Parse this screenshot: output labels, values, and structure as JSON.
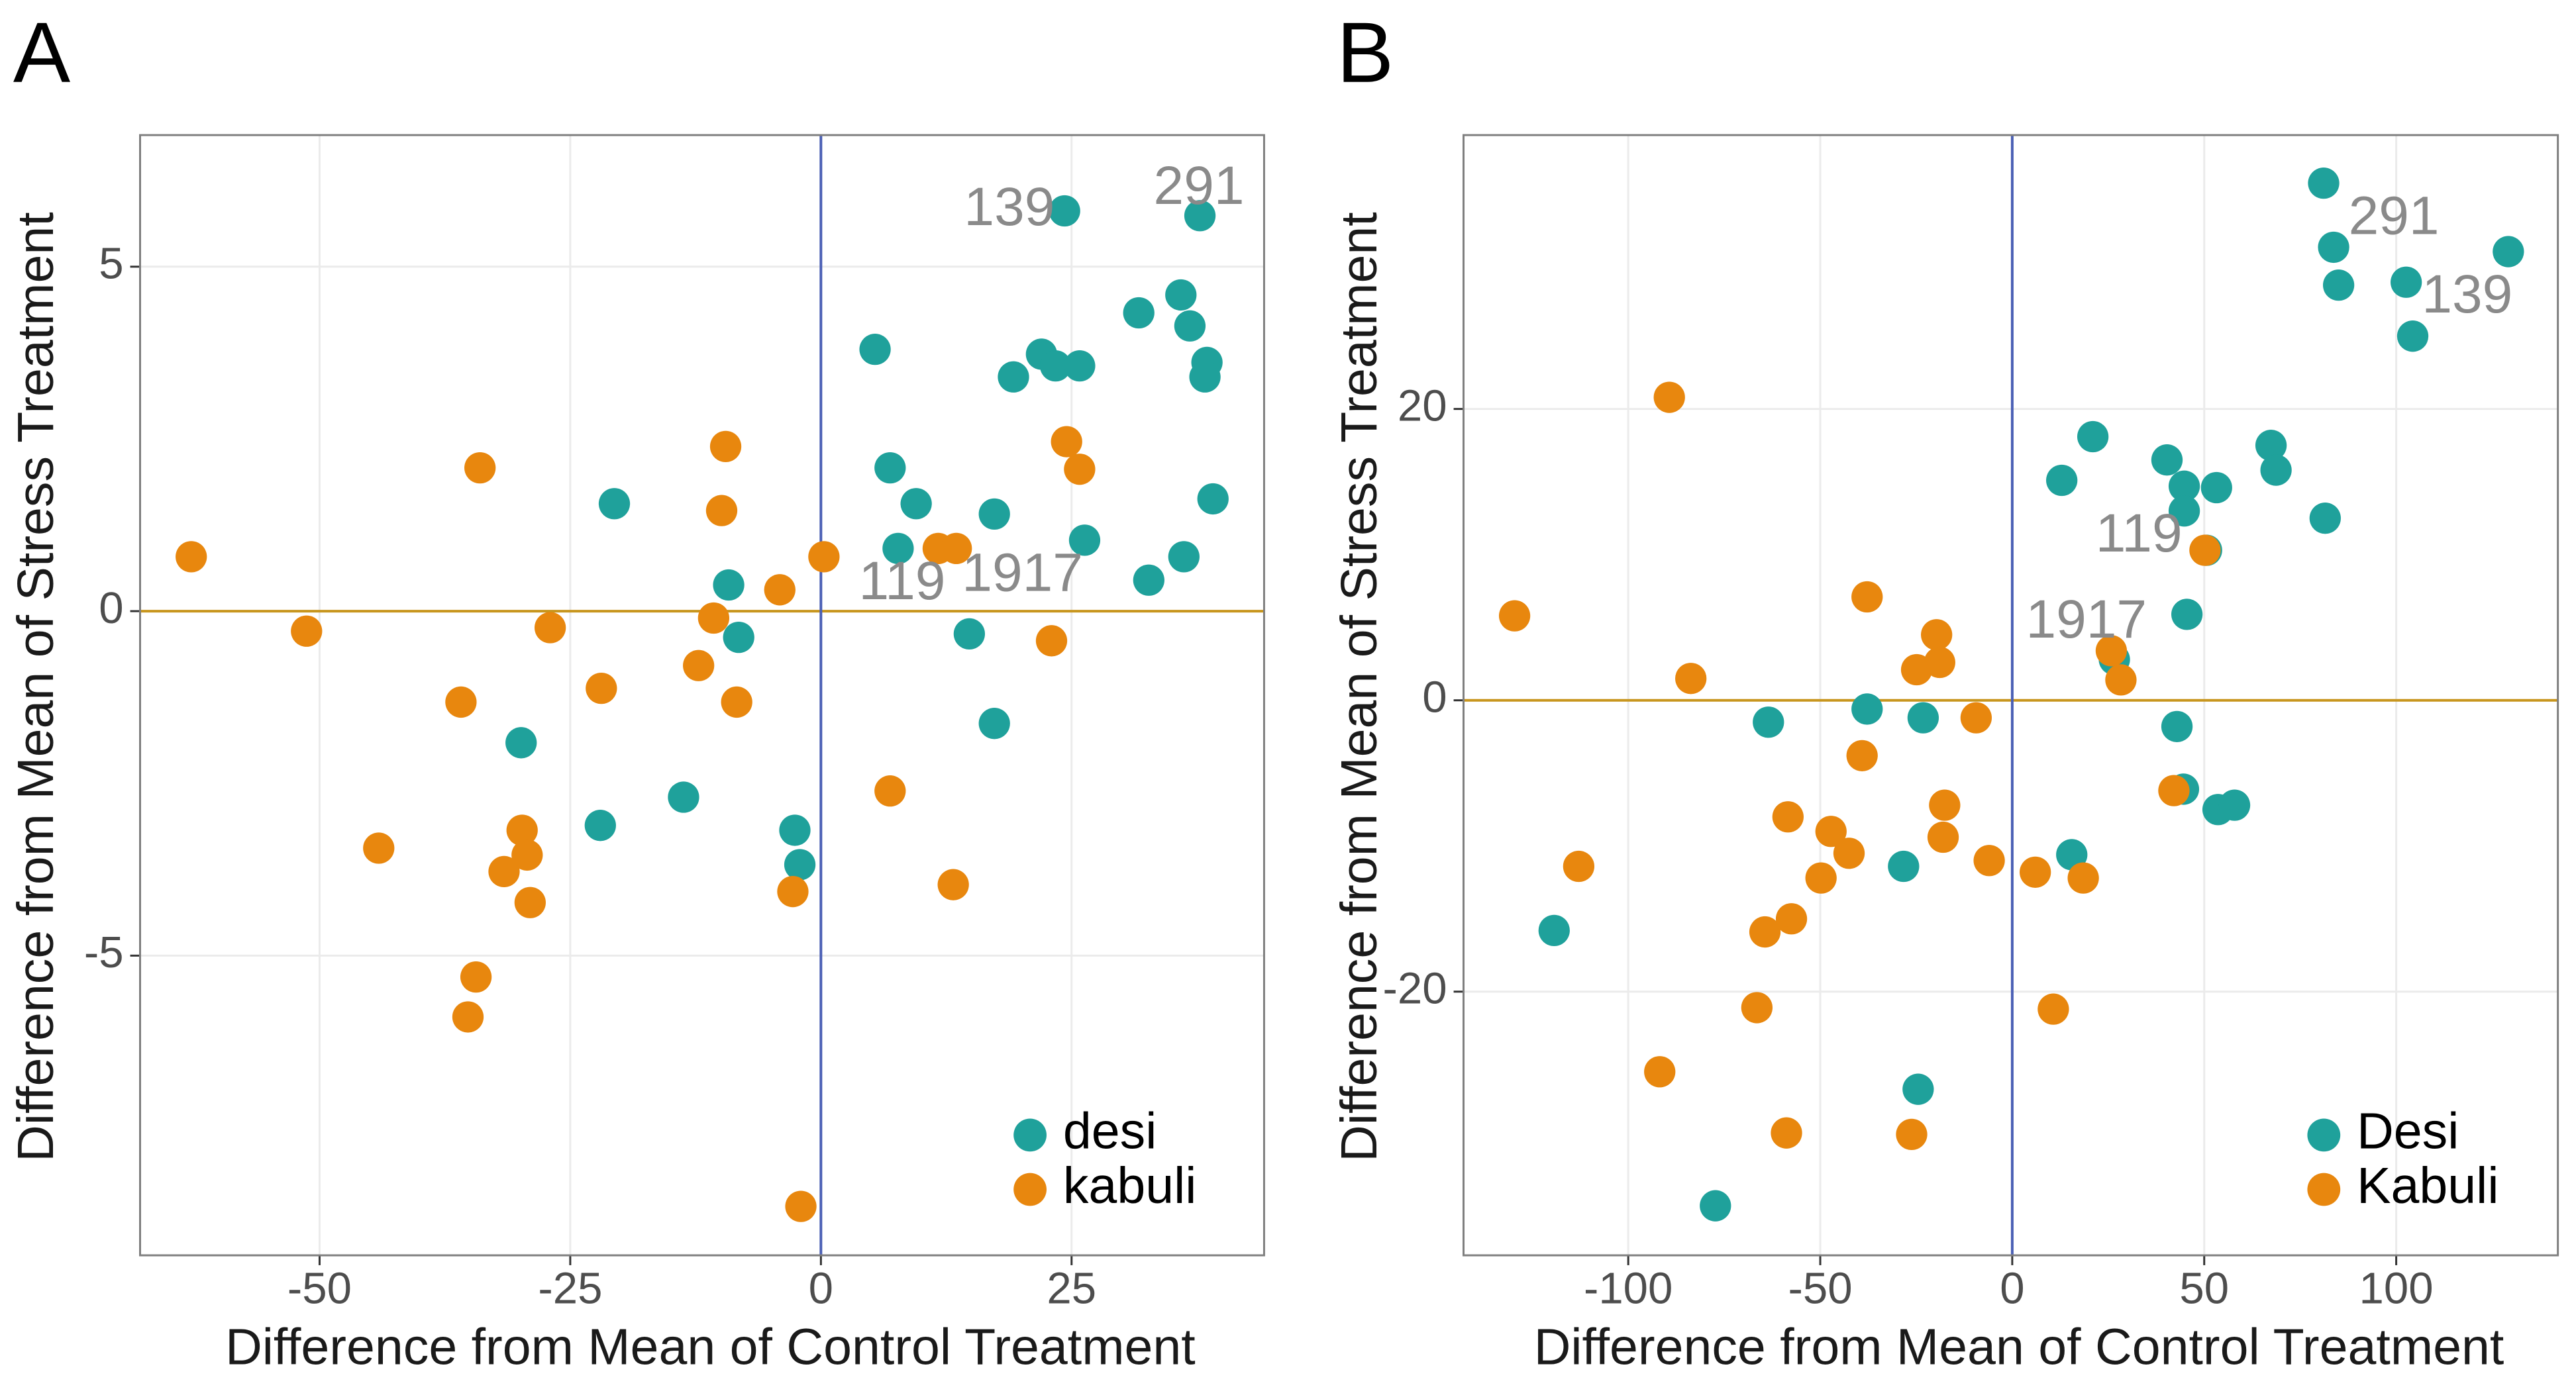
{
  "chart_data": [
    {
      "type": "scatter",
      "panel_label": "A",
      "x_label": "Difference from Mean of Control Treatment",
      "y_label": "Difference from Mean of Stress Treatment",
      "xlim": [
        -67.9,
        44.2
      ],
      "ylim": [
        -9.35,
        6.91
      ],
      "xticks": [
        -50,
        -25,
        0,
        25
      ],
      "yticks": [
        -5,
        0,
        5
      ],
      "grid": true,
      "hline": 0,
      "vline": 0,
      "legend": "bottom-right",
      "series": [
        {
          "name": "desi",
          "color": "#1fa19b",
          "x": [
            24.3,
            37.8,
            5.4,
            6.9,
            -20.6,
            9.5,
            7.7,
            -9.2,
            -8.2,
            -29.9,
            -22.0,
            -13.7,
            -2.6,
            -2.1,
            14.8,
            17.3,
            17.3,
            19.2,
            22.0,
            23.4,
            25.8,
            26.3,
            31.7,
            32.7,
            35.9,
            36.8,
            38.5,
            38.3,
            39.1,
            36.2
          ],
          "y": [
            5.81,
            5.74,
            3.8,
            2.08,
            1.56,
            1.56,
            0.91,
            0.38,
            -0.38,
            -1.91,
            -3.11,
            -2.7,
            -3.18,
            -3.68,
            -0.33,
            1.41,
            -1.63,
            3.4,
            3.73,
            3.56,
            3.56,
            1.03,
            4.33,
            0.45,
            4.59,
            4.14,
            3.61,
            3.4,
            1.63,
            0.79
          ]
        },
        {
          "name": "kabuli",
          "color": "#e8870e",
          "x": [
            -62.8,
            -51.3,
            -34.0,
            -27.0,
            -35.9,
            -21.9,
            -44.1,
            -34.4,
            -35.2,
            -31.6,
            -29.8,
            -29.3,
            -29.0,
            -9.5,
            -9.9,
            -10.7,
            -12.2,
            -8.4,
            -4.1,
            0.3,
            -2.8,
            -2.0,
            6.9,
            11.7,
            13.5,
            13.2,
            23.0,
            24.5,
            25.8
          ],
          "y": [
            0.79,
            -0.29,
            2.08,
            -0.24,
            -1.32,
            -1.12,
            -3.44,
            -5.31,
            -5.89,
            -3.78,
            -3.18,
            -3.54,
            -4.23,
            2.39,
            1.46,
            -0.1,
            -0.79,
            -1.32,
            0.31,
            0.79,
            -4.07,
            -8.64,
            -2.61,
            0.91,
            0.91,
            -3.97,
            -0.43,
            2.46,
            2.06
          ]
        }
      ],
      "annotations": [
        {
          "text": "139",
          "x": 18.8,
          "y": 5.81
        },
        {
          "text": "291",
          "x": 37.7,
          "y": 6.12
        },
        {
          "text": "119",
          "x": 8.1,
          "y": 0.38
        },
        {
          "text": "1917",
          "x": 20.1,
          "y": 0.5
        }
      ]
    },
    {
      "type": "scatter",
      "panel_label": "B",
      "x_label": "Difference from Mean of Control Treatment",
      "y_label": "Difference from Mean of Stress Treatment",
      "xlim": [
        -142.9,
        142.1
      ],
      "ylim": [
        -38.1,
        38.8
      ],
      "xticks": [
        -100,
        -50,
        0,
        50,
        100
      ],
      "yticks": [
        -20,
        0,
        20
      ],
      "grid": true,
      "hline": 0,
      "vline": 0,
      "legend": "bottom-right",
      "series": [
        {
          "name": "Desi",
          "color": "#1fa19b",
          "x": [
            81.1,
            83.7,
            85.0,
            102.6,
            104.3,
            129.2,
            21.0,
            12.9,
            40.3,
            44.8,
            44.8,
            53.2,
            50.6,
            67.4,
            68.7,
            81.5,
            45.5,
            26.6,
            42.9,
            44.6,
            53.6,
            57.9,
            15.5,
            -23.2,
            -37.8,
            -63.5,
            -28.3,
            -119.3,
            -24.5,
            -77.3
          ],
          "y": [
            35.5,
            31.1,
            28.5,
            28.7,
            25.0,
            30.8,
            18.1,
            15.1,
            16.5,
            14.7,
            13.0,
            14.6,
            10.3,
            17.5,
            15.8,
            12.5,
            5.9,
            2.8,
            -1.8,
            -6.1,
            -7.5,
            -7.2,
            -10.6,
            -1.2,
            -0.6,
            -1.5,
            -11.4,
            -15.8,
            -26.7,
            -34.7
          ]
        },
        {
          "name": "Kabuli",
          "color": "#e8870e",
          "x": [
            -129.6,
            -89.3,
            -83.7,
            -112.9,
            -37.8,
            -39.1,
            -19.7,
            -18.9,
            -24.9,
            -9.4,
            -17.6,
            -18.0,
            -6.0,
            -58.4,
            -47.2,
            -42.5,
            -49.8,
            -64.4,
            -57.5,
            -66.5,
            -58.8,
            -91.8,
            -26.2,
            6.0,
            18.5,
            10.7,
            25.8,
            28.3,
            50.2,
            42.1
          ],
          "y": [
            5.8,
            20.8,
            1.5,
            -11.4,
            7.1,
            -3.8,
            4.5,
            2.6,
            2.1,
            -1.2,
            -7.2,
            -9.4,
            -11.0,
            -8.0,
            -9.0,
            -10.5,
            -12.2,
            -15.9,
            -15.0,
            -21.1,
            -29.7,
            -25.5,
            -29.8,
            -11.8,
            -12.2,
            -21.2,
            3.4,
            1.4,
            10.3,
            -6.2
          ]
        }
      ],
      "annotations": [
        {
          "text": "291",
          "x": 99.4,
          "y": 33.0
        },
        {
          "text": "139",
          "x": 118.5,
          "y": 27.6
        },
        {
          "text": "119",
          "x": 33.0,
          "y": 11.2
        },
        {
          "text": "1917",
          "x": 19.3,
          "y": 5.3
        }
      ]
    }
  ]
}
